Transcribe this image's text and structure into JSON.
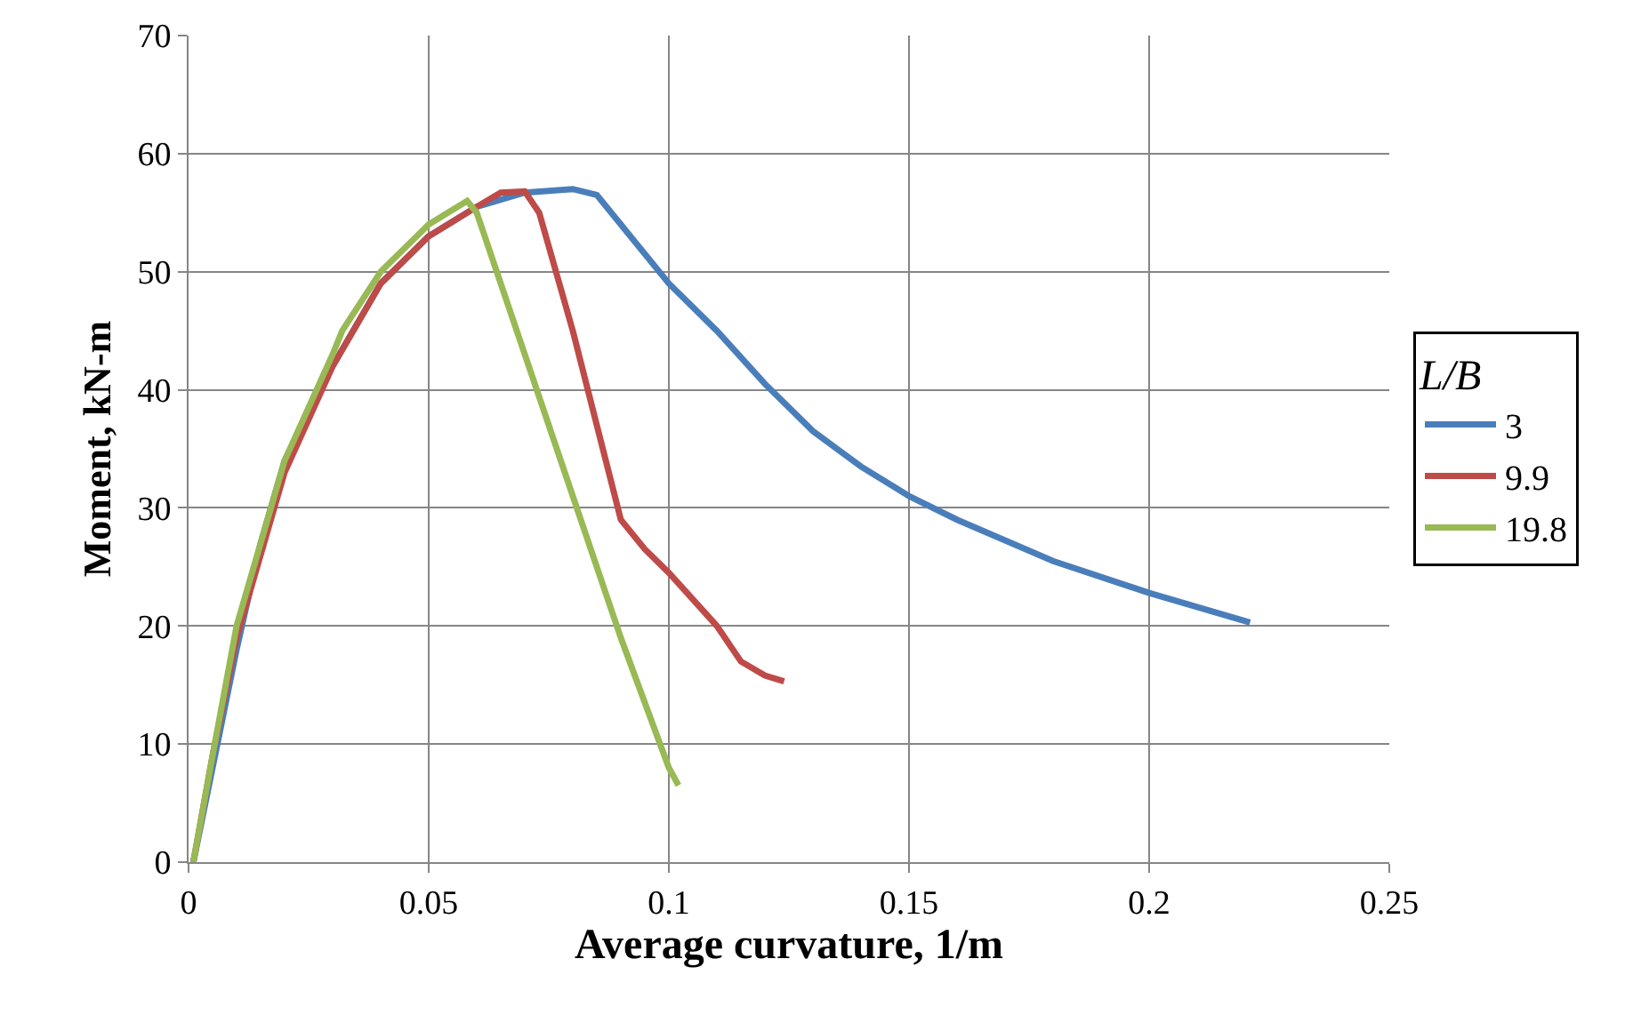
{
  "chart_data": {
    "type": "line",
    "xlabel": "Average curvature, 1/m",
    "ylabel": "Moment, kN-m",
    "legend_title": "L/B",
    "legend": "right",
    "grid": true,
    "marker": "none",
    "line_style": "solid",
    "xlim": [
      0,
      0.25
    ],
    "xticks": [
      0,
      0.05,
      0.1,
      0.15,
      0.2,
      0.25
    ],
    "ylim": [
      0,
      70
    ],
    "yticks": [
      0,
      10,
      20,
      30,
      40,
      50,
      60,
      70
    ],
    "series": [
      {
        "name": "3",
        "color": "#4a7ebb",
        "x": [
          0.001,
          0.005,
          0.01,
          0.015,
          0.02,
          0.03,
          0.04,
          0.05,
          0.06,
          0.07,
          0.08,
          0.085,
          0.09,
          0.1,
          0.11,
          0.12,
          0.13,
          0.14,
          0.15,
          0.16,
          0.18,
          0.2,
          0.221
        ],
        "values": [
          0,
          8,
          18,
          27,
          34,
          42,
          49,
          53,
          55.5,
          56.7,
          57,
          56.5,
          54,
          49,
          45,
          40.5,
          36.5,
          33.5,
          31,
          29,
          25.5,
          22.8,
          20.3
        ]
      },
      {
        "name": "9.9",
        "color": "#be4b48",
        "x": [
          0.001,
          0.005,
          0.01,
          0.02,
          0.03,
          0.04,
          0.05,
          0.06,
          0.065,
          0.07,
          0.073,
          0.08,
          0.085,
          0.09,
          0.095,
          0.1,
          0.11,
          0.115,
          0.12,
          0.124
        ],
        "values": [
          0,
          9,
          19,
          33,
          42,
          49,
          53,
          55.5,
          56.7,
          56.8,
          55,
          45,
          37,
          29,
          26.5,
          24.5,
          20,
          17,
          15.8,
          15.3
        ]
      },
      {
        "name": "19.8",
        "color": "#98b954",
        "x": [
          0.001,
          0.005,
          0.01,
          0.02,
          0.03,
          0.032,
          0.04,
          0.05,
          0.058,
          0.06,
          0.07,
          0.08,
          0.09,
          0.1,
          0.102
        ],
        "values": [
          0,
          9,
          20,
          34,
          43,
          45,
          50,
          54,
          56,
          55,
          43,
          31,
          19,
          8,
          6.5
        ]
      }
    ]
  }
}
